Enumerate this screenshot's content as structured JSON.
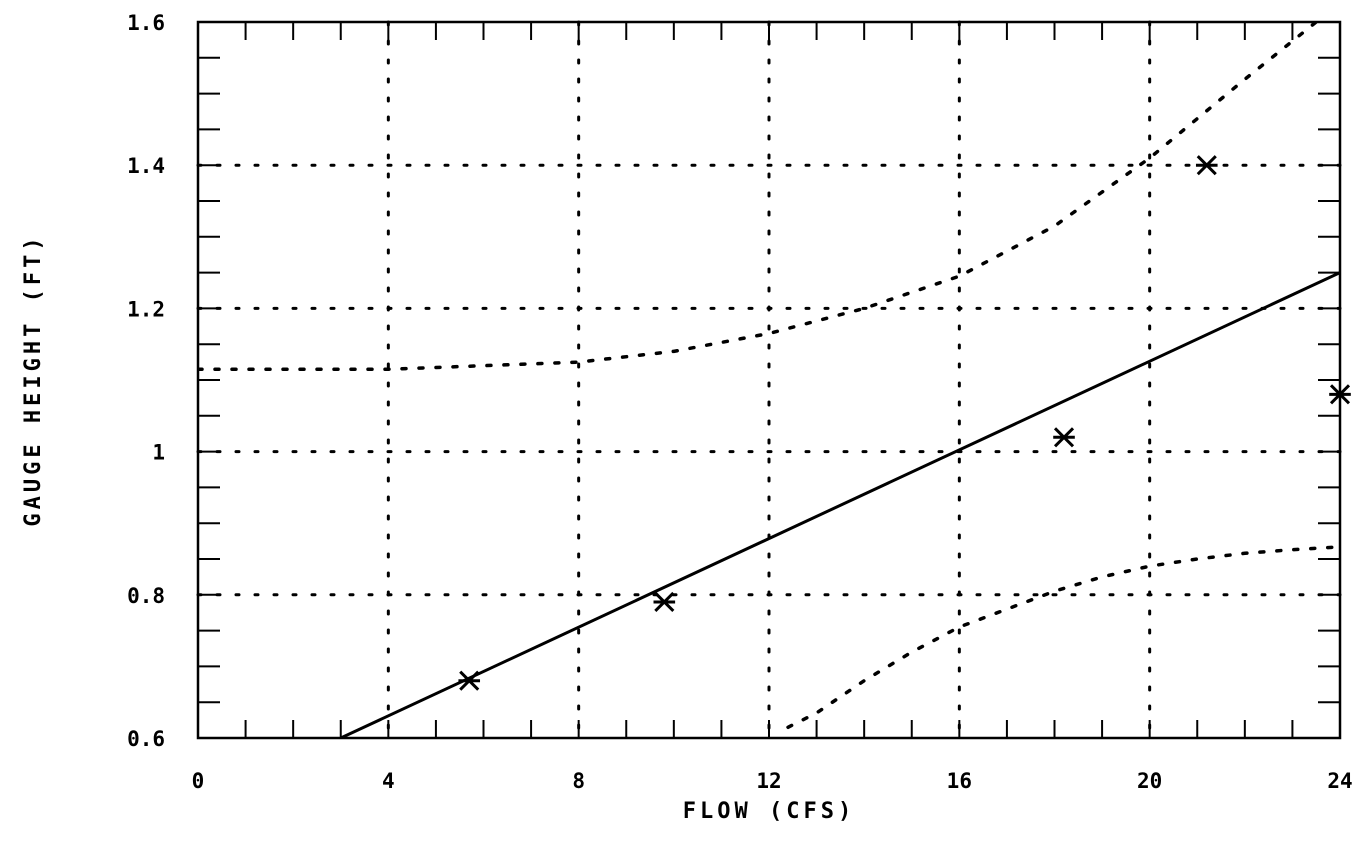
{
  "chart_data": {
    "type": "scatter",
    "title": "",
    "xlabel": "FLOW (CFS)",
    "ylabel": "GAUGE HEIGHT (FT)",
    "xlim": [
      0,
      24
    ],
    "ylim": [
      0.6,
      1.6
    ],
    "x_ticks": [
      0,
      4,
      8,
      12,
      16,
      20,
      24
    ],
    "x_tick_labels": [
      "0",
      "4",
      "8",
      "12",
      "16",
      "20",
      "24"
    ],
    "y_ticks": [
      0.6,
      0.8,
      1.0,
      1.2,
      1.4,
      1.6
    ],
    "y_tick_labels": [
      "0.6",
      "0.8",
      "1",
      "1.2",
      "1.4",
      "1.6"
    ],
    "grid": true,
    "grid_style": "dotted",
    "series": [
      {
        "kind": "scatter",
        "marker": "asterisk",
        "x": [
          5.7,
          9.8,
          18.2,
          21.2,
          24.0
        ],
        "y": [
          0.68,
          0.79,
          1.02,
          1.4,
          1.08
        ]
      },
      {
        "kind": "fit-line",
        "style": "solid",
        "x": [
          3.0,
          24.0
        ],
        "y": [
          0.6,
          1.25
        ]
      },
      {
        "kind": "upper-band",
        "style": "dashed",
        "x": [
          0,
          4,
          8,
          10,
          12,
          14,
          16,
          18,
          20,
          22,
          23.5
        ],
        "y": [
          1.115,
          1.115,
          1.125,
          1.14,
          1.165,
          1.2,
          1.245,
          1.315,
          1.41,
          1.52,
          1.6
        ]
      },
      {
        "kind": "lower-band",
        "style": "dashed",
        "x": [
          12.4,
          13,
          14,
          15,
          16,
          17,
          18,
          19,
          20,
          21,
          22,
          23,
          24
        ],
        "y": [
          0.615,
          0.635,
          0.68,
          0.72,
          0.755,
          0.78,
          0.805,
          0.825,
          0.84,
          0.85,
          0.858,
          0.863,
          0.867
        ]
      }
    ],
    "colors": {
      "ink": "#000000",
      "background": "#ffffff"
    }
  }
}
